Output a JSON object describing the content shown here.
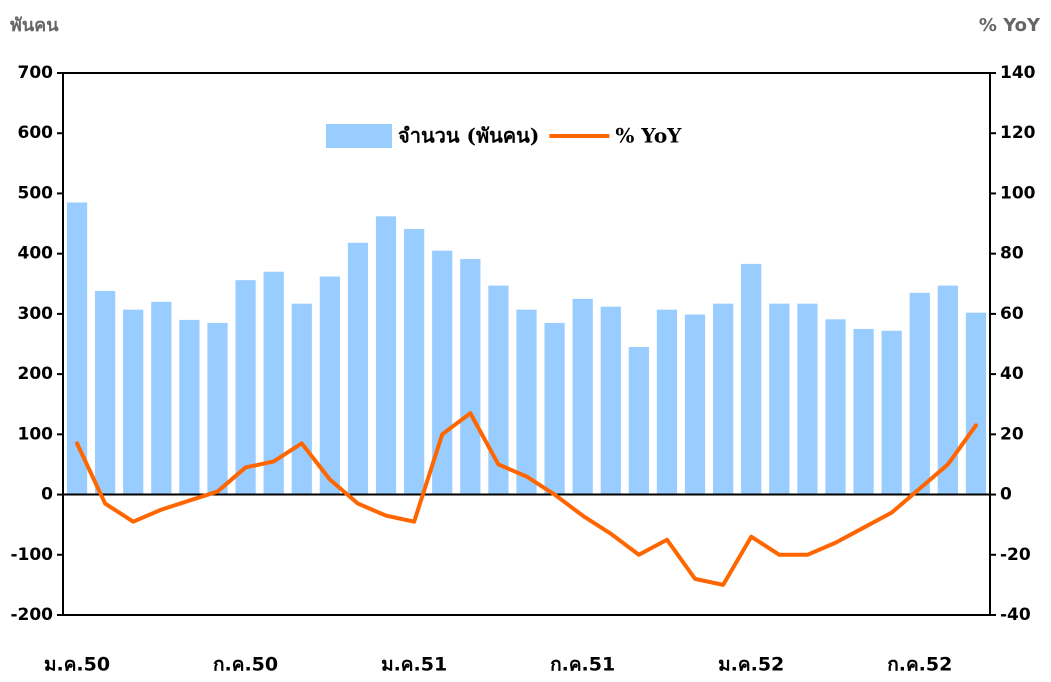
{
  "chart_data": {
    "type": "bar-line",
    "y_label": "พันคน",
    "y2_label": "% YoY",
    "categories": [
      "ม.ค.50",
      null,
      null,
      null,
      null,
      null,
      "ก.ค.50",
      null,
      null,
      null,
      null,
      null,
      "ม.ค.51",
      null,
      null,
      null,
      null,
      null,
      "ก.ค.51",
      null,
      null,
      null,
      null,
      null,
      "ม.ค.52",
      null,
      null,
      null,
      null,
      null,
      "ก.ค.52",
      null,
      null
    ],
    "series": [
      {
        "name": "จำนวน (พันคน)",
        "type": "bar",
        "color": "#99ccff",
        "values": [
          485,
          338,
          307,
          320,
          290,
          285,
          356,
          370,
          317,
          362,
          418,
          462,
          441,
          405,
          391,
          347,
          307,
          285,
          325,
          312,
          245,
          307,
          299,
          317,
          383,
          317,
          317,
          291,
          275,
          272,
          335,
          347,
          302
        ]
      },
      {
        "name": "% YoY",
        "type": "line",
        "color": "#ff6600",
        "axis": "y2",
        "values": [
          17,
          -3,
          -9,
          -5,
          -2,
          1,
          9,
          11,
          17,
          5,
          -3,
          -7,
          -9,
          20,
          27,
          10,
          6,
          0,
          -7,
          -13,
          -20,
          -15,
          -28,
          -30,
          -14,
          -20,
          -20,
          -16,
          -11,
          -6,
          2,
          10,
          23
        ]
      }
    ],
    "ylim": [
      -200,
      700
    ],
    "yticks": [
      -200,
      -100,
      0,
      100,
      200,
      300,
      400,
      500,
      600,
      700
    ],
    "y2lim": [
      -40,
      140
    ],
    "y2ticks": [
      -40,
      -20,
      0,
      20,
      40,
      60,
      80,
      100,
      120,
      140
    ]
  }
}
